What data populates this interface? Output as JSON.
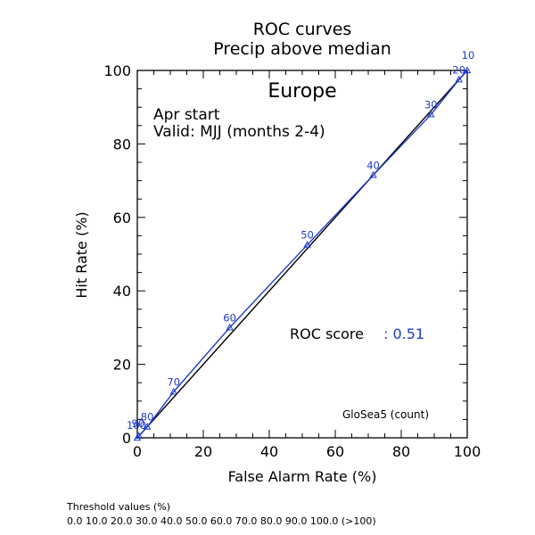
{
  "chart_data": {
    "type": "line",
    "title": "ROC curves",
    "subtitle": "Precip above median",
    "region": "Europe",
    "annotations": [
      "Apr start",
      "Valid: MJJ (months 2-4)"
    ],
    "xlabel": "False Alarm Rate (%)",
    "ylabel": "Hit Rate (%)",
    "xlim": [
      0,
      100
    ],
    "ylim": [
      0,
      100
    ],
    "xticks": [
      0,
      20,
      40,
      60,
      80,
      100
    ],
    "yticks": [
      0,
      20,
      40,
      60,
      80,
      100
    ],
    "grid": false,
    "score_label": "ROC score",
    "score_value": ": 0.51",
    "model_label": "GloSea5 (count)",
    "diagonal": [
      [
        0,
        0
      ],
      [
        100,
        100
      ]
    ],
    "series": [
      {
        "points": [
          {
            "x": 0,
            "y": 0,
            "label": "100"
          },
          {
            "x": 0.5,
            "y": 0.5,
            "label": "90"
          },
          {
            "x": 3,
            "y": 3,
            "label": "80"
          },
          {
            "x": 11,
            "y": 12.5,
            "label": "70"
          },
          {
            "x": 28,
            "y": 30,
            "label": "60"
          },
          {
            "x": 51.5,
            "y": 52.5,
            "label": "50"
          },
          {
            "x": 71.5,
            "y": 71.5,
            "label": "40"
          },
          {
            "x": 89,
            "y": 88,
            "label": "30"
          },
          {
            "x": 97.5,
            "y": 97.5,
            "label": "20"
          },
          {
            "x": 100,
            "y": 100,
            "label": "10"
          }
        ]
      }
    ],
    "colors": {
      "series": "#1e3cc8",
      "diagonal": "#000000",
      "axis": "#000000"
    }
  },
  "footer": {
    "title": "Threshold values (%)",
    "values": "0.0 10.0 20.0 30.0 40.0 50.0 60.0 70.0 80.0 90.0 100.0 (>100)"
  }
}
